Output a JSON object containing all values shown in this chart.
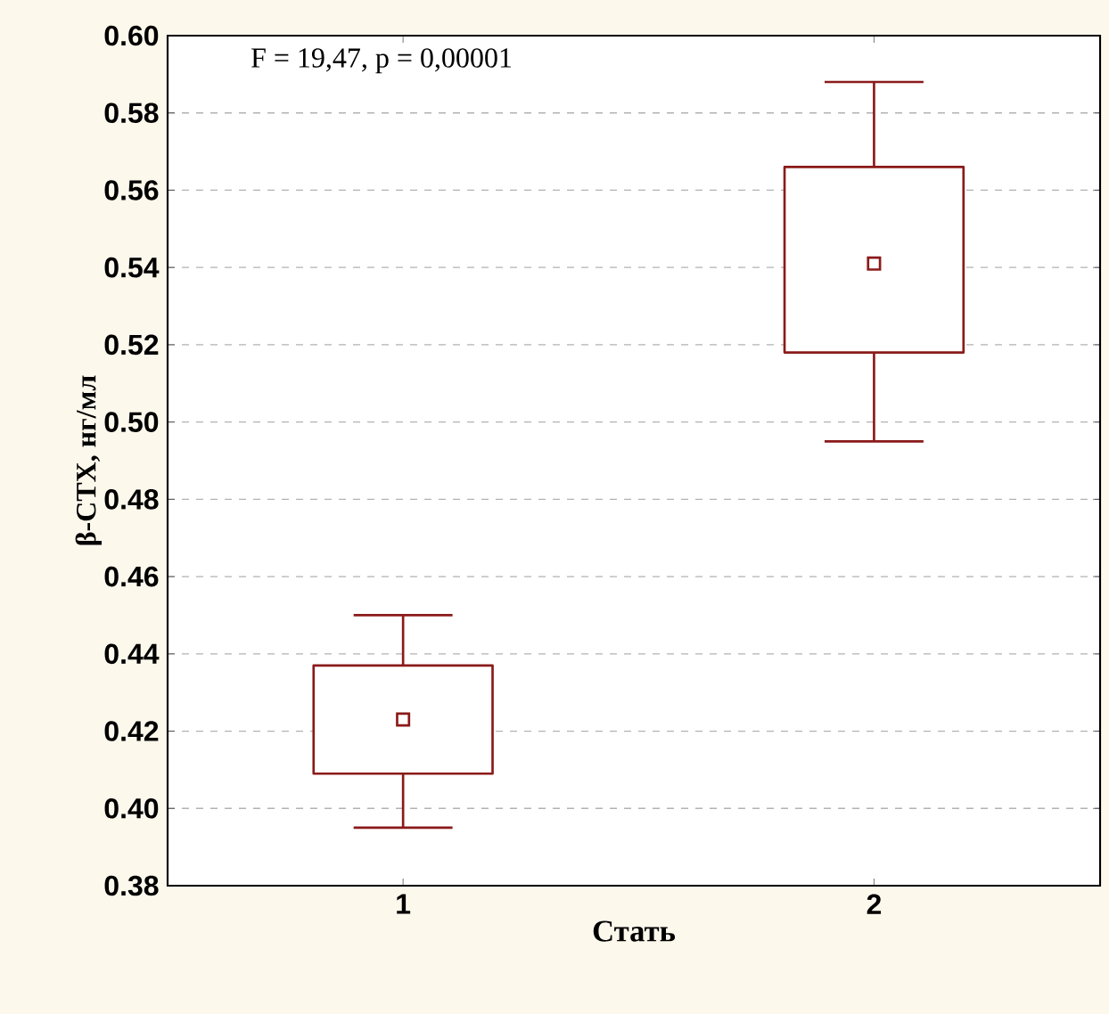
{
  "chart_data": {
    "type": "box",
    "xlabel": "Стать",
    "ylabel": "β-CTX, нг/мл",
    "annotations": [
      "F = 19,47, p = 0,00001"
    ],
    "categories": [
      "1",
      "2"
    ],
    "boxes": [
      {
        "low": 0.395,
        "q1": 0.409,
        "median": 0.423,
        "q3": 0.437,
        "high": 0.45
      },
      {
        "low": 0.495,
        "q1": 0.518,
        "median": 0.541,
        "q3": 0.566,
        "high": 0.588
      }
    ],
    "color": "#8b1a1a",
    "marker": "square",
    "ylim": [
      0.38,
      0.6
    ],
    "yticks": [
      {
        "value": 0.38,
        "label": "0.38"
      },
      {
        "value": 0.4,
        "label": "0.40"
      },
      {
        "value": 0.42,
        "label": "0.42"
      },
      {
        "value": 0.44,
        "label": "0.44"
      },
      {
        "value": 0.46,
        "label": "0.46"
      },
      {
        "value": 0.48,
        "label": "0.48"
      },
      {
        "value": 0.5,
        "label": "0.50"
      },
      {
        "value": 0.52,
        "label": "0.52"
      },
      {
        "value": 0.54,
        "label": "0.54"
      },
      {
        "value": 0.56,
        "label": "0.56"
      },
      {
        "value": 0.58,
        "label": "0.58"
      },
      {
        "value": 0.6,
        "label": "0.60"
      }
    ],
    "grid": "y"
  }
}
